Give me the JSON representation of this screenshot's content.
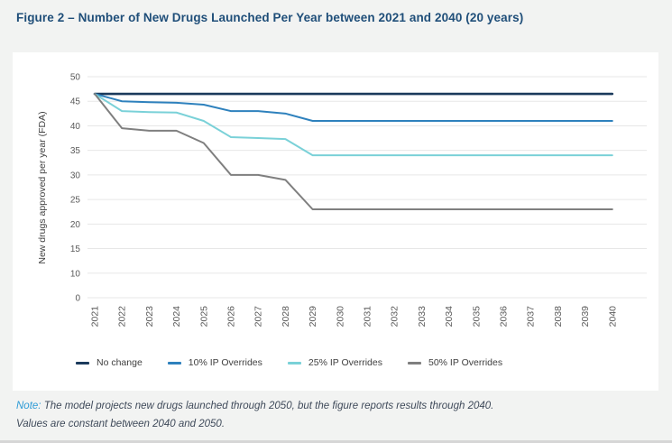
{
  "title": "Figure 2 – Number of New Drugs Launched Per Year between 2021 and 2040 (20 years)",
  "note": {
    "label": "Note:",
    "line1": "The model projects new drugs launched through 2050, but the figure reports results through 2040.",
    "line2": "Values are constant between 2040 and 2050."
  },
  "colors": {
    "title_text": "#1F4E79",
    "note_label": "#2E9BD6",
    "note_text": "#3F4A5A",
    "grid": "#E7E7E7",
    "tick_text": "#595959",
    "axis_title_text": "#404040",
    "legend_text": "#3F3F3F",
    "card_bg": "#FFFFFF",
    "page_bg": "#F2F3F2"
  },
  "chart_data": {
    "type": "line",
    "title": "",
    "xlabel": "",
    "ylabel": "New drugs approved per year (FDA)",
    "grid": true,
    "legend_position": "bottom",
    "x_tick_rotation": -90,
    "x": [
      "2021",
      "2022",
      "2023",
      "2024",
      "2025",
      "2026",
      "2027",
      "2028",
      "2029",
      "2030",
      "2031",
      "2032",
      "2033",
      "2034",
      "2035",
      "2036",
      "2037",
      "2038",
      "2039",
      "2040"
    ],
    "y_ticks": [
      50,
      45,
      40,
      35,
      30,
      25,
      20,
      15,
      10,
      0
    ],
    "series": [
      {
        "name": "No change",
        "color": "#1B3A5C",
        "values": [
          46.5,
          46.5,
          46.5,
          46.5,
          46.5,
          46.5,
          46.5,
          46.5,
          46.5,
          46.5,
          46.5,
          46.5,
          46.5,
          46.5,
          46.5,
          46.5,
          46.5,
          46.5,
          46.5,
          46.5
        ]
      },
      {
        "name": "10% IP Overrides",
        "color": "#2E81BD",
        "values": [
          46.5,
          45,
          44.8,
          44.7,
          44.3,
          43,
          43,
          42.5,
          41,
          41,
          41,
          41,
          41,
          41,
          41,
          41,
          41,
          41,
          41,
          41
        ]
      },
      {
        "name": "25% IP Overrides",
        "color": "#7AD1D8",
        "values": [
          46.5,
          43,
          42.8,
          42.7,
          41,
          37.7,
          37.5,
          37.3,
          34,
          34,
          34,
          34,
          34,
          34,
          34,
          34,
          34,
          34,
          34,
          34
        ]
      },
      {
        "name": "50% IP Overrides",
        "color": "#7F7F7F",
        "values": [
          46.5,
          39.5,
          39,
          39,
          36.5,
          30,
          30,
          29,
          23,
          23,
          23,
          23,
          23,
          23,
          23,
          23,
          23,
          23,
          23,
          23
        ]
      }
    ]
  }
}
